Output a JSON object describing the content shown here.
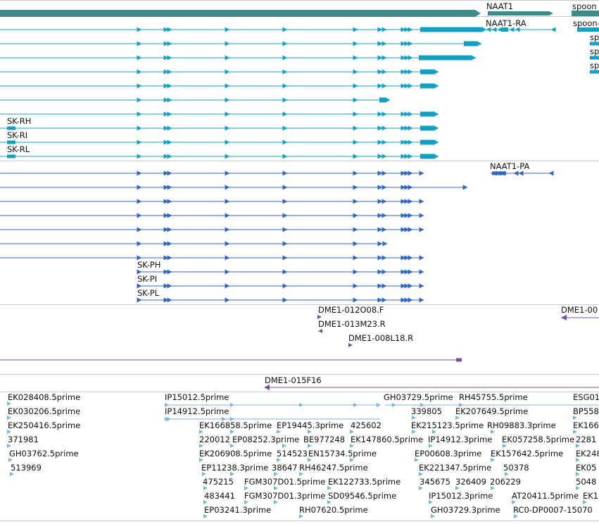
{
  "colors": {
    "gene_bar": "#3b8b8b",
    "transcript": "#14a0c4",
    "protein": "#2f66c8",
    "clone": "#7a4da8",
    "est": "#78b6e0",
    "divider": "#c9c9c9"
  },
  "tracks": {
    "gene": {
      "naat1_label": "NAAT1",
      "spoon_label": "spoon"
    },
    "transcripts": {
      "naat1_ra_label": "NAAT1-RA",
      "spoon_label": "spoon-",
      "spoon_partial_label": "spo",
      "sk_rh_label": "SK-RH",
      "sk_ri_label": "SK-RI",
      "sk_rl_label": "SK-RL"
    },
    "proteins": {
      "naat1_pa_label": "NAAT1-PA",
      "sk_ph_label": "SK-PH",
      "sk_pi_label": "SK-PI",
      "sk_pl_label": "SK-PL"
    },
    "clones": {
      "labels": [
        "DME1-012O08.F",
        "DME1-013M23.R",
        "DME1-008L18.R",
        "DME1-015F16",
        "DME1-00"
      ]
    },
    "ests": {
      "labels": [
        "EK028408.5prime",
        "EK030206.5prime",
        "EK250416.5prime",
        "371981",
        "GH03762.5prime",
        "513969",
        "IP15012.5prime",
        "IP14912.5prime",
        "EK166858.5prime",
        "EP19445.3prime",
        "425602",
        "220012",
        "EP08252.3prime",
        "BE977248",
        "EK147860.5prime",
        "EK206908.5prime",
        "514523",
        "EN15734.5prime",
        "EP11238.3prime",
        "38647",
        "RH46247.5prime",
        "475215",
        "FGM307D01.5prime",
        "EK122733.5prime",
        "483441",
        "FGM307D01.3prime",
        "SD09546.5prime",
        "EP03241.3prime",
        "RH07620.5prime",
        "GH03729.5prime",
        "RH45755.5prime",
        "ESG01",
        "339805",
        "EK207649.5prime",
        "BP558",
        "EK215123.5prime",
        "RH09883.3prime",
        "EK166",
        "IP14912.3prime",
        "EK057258.5prime",
        "2281",
        "EP00608.3prime",
        "EK157642.5prime",
        "EK248",
        "EK221347.5prime",
        "50378",
        "EK05",
        "345675",
        "326409",
        "206229",
        "5048",
        "IP15012.3prime",
        "AT20411.5prime",
        "EK1",
        "GH03729.3prime",
        "RC0-DP0007-15070"
      ]
    }
  }
}
